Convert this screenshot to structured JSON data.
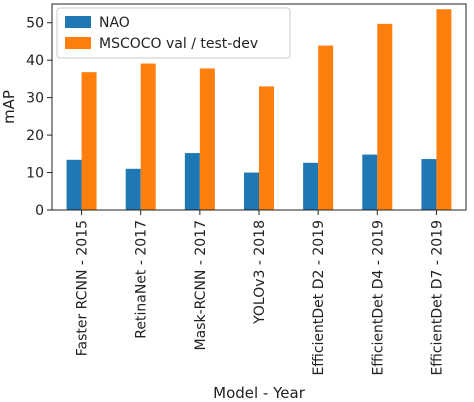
{
  "chart_data": {
    "type": "bar",
    "categories": [
      "Faster RCNN - 2015",
      "RetinaNet - 2017",
      "Mask-RCNN - 2017",
      "YOLOv3 - 2018",
      "EfficientDet D2 - 2019",
      "EfficientDet D4 - 2019",
      "EfficientDet D7 - 2019"
    ],
    "series": [
      {
        "name": "NAO",
        "color": "#1f77b4",
        "values": [
          13.4,
          11.0,
          15.2,
          10.0,
          12.6,
          14.8,
          13.6
        ]
      },
      {
        "name": "MSCOCO val / test-dev",
        "color": "#ff7f0e",
        "values": [
          36.8,
          39.1,
          37.8,
          33.0,
          43.9,
          49.7,
          53.6
        ]
      }
    ],
    "title": "",
    "xlabel": "Model - Year",
    "ylabel": "mAP",
    "ylim": [
      0,
      55
    ],
    "yticks": [
      0,
      10,
      20,
      30,
      40,
      50
    ],
    "grid": false,
    "legend": "top-left"
  }
}
